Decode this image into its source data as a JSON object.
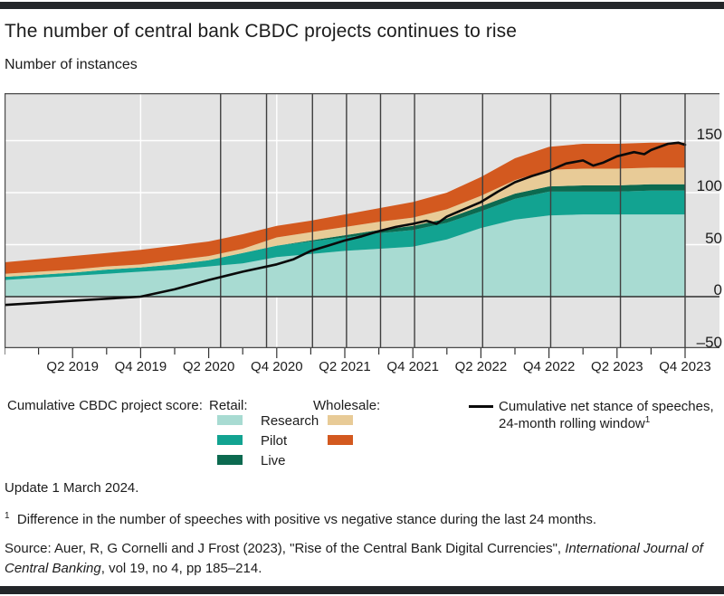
{
  "header": {
    "title": "The number of central bank CBDC projects continues to rise",
    "subtitle": "Number of instances"
  },
  "chart_data": {
    "type": "area",
    "stacked": true,
    "title": "The number of central bank CBDC projects continues to rise",
    "ylabel": "Number of instances",
    "x_tick_labels": [
      "Q2 2019",
      "Q4 2019",
      "Q2 2020",
      "Q4 2020",
      "Q2 2021",
      "Q4 2021",
      "Q2 2022",
      "Q4 2022",
      "Q2 2023",
      "Q4 2023"
    ],
    "x_label_indices": [
      2,
      4,
      6,
      8,
      10,
      12,
      14,
      16,
      18,
      20
    ],
    "x_points_total": 21,
    "y_ticks": [
      -50,
      0,
      50,
      100,
      150
    ],
    "ylim": [
      -50,
      195
    ],
    "grid": "horizontal-white-on-grey",
    "plot_background": "#e3e3e3",
    "series": [
      {
        "name": "Retail: Research",
        "color": "#a8dbd2",
        "values": [
          16,
          18,
          20,
          22,
          24,
          26,
          29,
          32,
          38,
          41,
          44,
          46,
          48,
          55,
          66,
          74,
          78,
          79,
          79,
          79,
          79
        ]
      },
      {
        "name": "Retail: Pilot",
        "color": "#12a391",
        "values": [
          3,
          3,
          3,
          4,
          4,
          5,
          6,
          10,
          11,
          12,
          13,
          15,
          16,
          16,
          16,
          20,
          23,
          22,
          22,
          23,
          23
        ]
      },
      {
        "name": "Retail: Live",
        "color": "#0c6a50",
        "values": [
          0,
          0,
          0,
          0,
          0,
          0,
          0,
          0,
          0,
          1,
          2,
          3,
          4,
          4,
          5,
          5,
          5,
          6,
          6,
          6,
          6
        ]
      },
      {
        "name": "Wholesale: Research",
        "color": "#e8cb97",
        "values": [
          3,
          3,
          3,
          3,
          3,
          4,
          4,
          4,
          8,
          8,
          8,
          8,
          8,
          9,
          10,
          13,
          16,
          16,
          16,
          16,
          16
        ]
      },
      {
        "name": "Wholesale: Pilot",
        "color": "#d3591f",
        "values": [
          11,
          12,
          13,
          13,
          14,
          14,
          14,
          14,
          11,
          11,
          12,
          13,
          15,
          16,
          18,
          21,
          22,
          24,
          24,
          24,
          24
        ]
      }
    ],
    "line": {
      "name": "Cumulative net stance of speeches, 24-month rolling window",
      "color": "#0a0a0a",
      "points": [
        [
          0,
          -8
        ],
        [
          1,
          -6
        ],
        [
          2,
          -4
        ],
        [
          3,
          -2
        ],
        [
          4,
          0
        ],
        [
          5,
          7
        ],
        [
          6,
          16
        ],
        [
          7,
          24
        ],
        [
          8,
          31
        ],
        [
          8.5,
          36
        ],
        [
          9,
          44
        ],
        [
          9.5,
          49
        ],
        [
          10,
          54
        ],
        [
          10.5,
          58
        ],
        [
          11,
          63
        ],
        [
          11.5,
          67
        ],
        [
          12,
          70
        ],
        [
          12.4,
          73
        ],
        [
          12.7,
          70
        ],
        [
          13,
          77
        ],
        [
          13.5,
          84
        ],
        [
          14,
          91
        ],
        [
          14.5,
          101
        ],
        [
          15,
          110
        ],
        [
          15.5,
          116
        ],
        [
          16,
          121
        ],
        [
          16.5,
          128
        ],
        [
          17,
          131
        ],
        [
          17.3,
          126
        ],
        [
          17.6,
          129
        ],
        [
          18,
          135
        ],
        [
          18.5,
          139
        ],
        [
          18.8,
          137
        ],
        [
          19,
          141
        ],
        [
          19.5,
          147
        ],
        [
          19.8,
          148
        ],
        [
          20,
          146
        ]
      ]
    },
    "vertical_reference_lines": {
      "positions_quarter_index": [
        6.35,
        7.7,
        9.05,
        10.05,
        11.05,
        12.05,
        14.05,
        16.05,
        18.1
      ]
    },
    "white_vertical_gridline_indices": [
      4,
      8
    ]
  },
  "legend": {
    "group_label": "Cumulative CBDC project score:",
    "retail_header": "Retail:",
    "wholesale_header": "Wholesale:",
    "rows": [
      {
        "label": "Research"
      },
      {
        "label": "Pilot"
      },
      {
        "label": "Live"
      }
    ],
    "line_label_line1": "Cumulative net stance of speeches,",
    "line_label_line2": "24-month rolling window",
    "line_label_sup": "1"
  },
  "notes": {
    "update": "Update 1 March 2024.",
    "footnote_marker": "1",
    "footnote": "Difference in the number of speeches with positive vs negative stance during the last 24 months.",
    "source_prefix": "Source: Auer, R, G Cornelli and J Frost (2023), \"Rise of the Central Bank Digital Currencies\", ",
    "source_italic": "International Journal of Central Banking",
    "source_suffix": ", vol 19, no 4, pp 185–214."
  }
}
